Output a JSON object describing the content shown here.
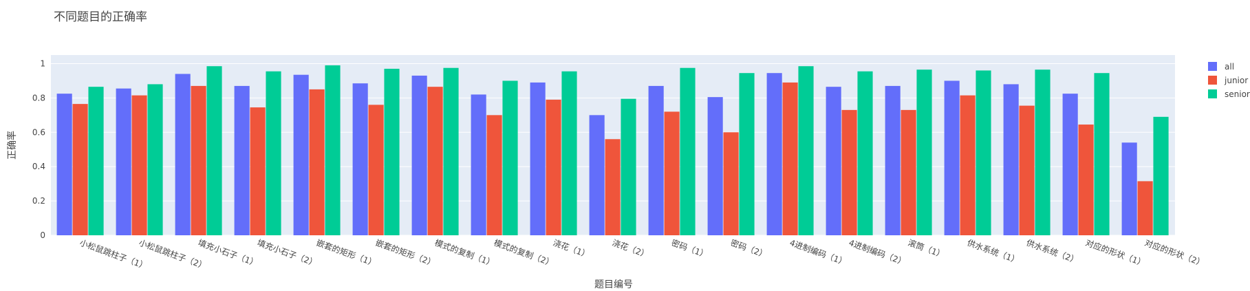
{
  "chart_data": {
    "type": "bar",
    "title": "不同题目的正确率",
    "xlabel": "题目编号",
    "ylabel": "正确率",
    "ylim": [
      0,
      1.05
    ],
    "yticks": [
      0,
      0.2,
      0.4,
      0.6,
      0.8,
      1
    ],
    "yticklabels": [
      "0",
      "0.2",
      "0.4",
      "0.6",
      "0.8",
      "1"
    ],
    "grid": true,
    "legend_position": "top-right",
    "categories": [
      "小松鼠跳柱子（1）",
      "小松鼠跳柱子（2）",
      "填充小石子（1）",
      "填充小石子（2）",
      "嵌套的矩形（1）",
      "嵌套的矩形（2）",
      "模式的复制（1）",
      "模式的复制（2）",
      "浇花（1）",
      "浇花（2）",
      "密码（1）",
      "密码（2）",
      "4进制编码（1）",
      "4进制编码（2）",
      "滚筒（1）",
      "供水系统（1）",
      "供水系统（2）",
      "对应的形状（1）",
      "对应的形状（2）"
    ],
    "series": [
      {
        "name": "all",
        "color": "#636efa",
        "values": [
          0.825,
          0.855,
          0.94,
          0.87,
          0.935,
          0.885,
          0.93,
          0.82,
          0.89,
          0.7,
          0.87,
          0.805,
          0.945,
          0.865,
          0.87,
          0.9,
          0.88,
          0.825,
          0.54
        ]
      },
      {
        "name": "junior",
        "color": "#ef553b",
        "values": [
          0.765,
          0.815,
          0.87,
          0.745,
          0.85,
          0.76,
          0.865,
          0.7,
          0.79,
          0.56,
          0.72,
          0.6,
          0.89,
          0.73,
          0.73,
          0.815,
          0.755,
          0.645,
          0.315
        ]
      },
      {
        "name": "senior",
        "color": "#00cc96",
        "values": [
          0.865,
          0.88,
          0.985,
          0.955,
          0.99,
          0.97,
          0.975,
          0.9,
          0.955,
          0.795,
          0.975,
          0.945,
          0.985,
          0.955,
          0.965,
          0.96,
          0.965,
          0.945,
          0.69
        ]
      }
    ]
  }
}
